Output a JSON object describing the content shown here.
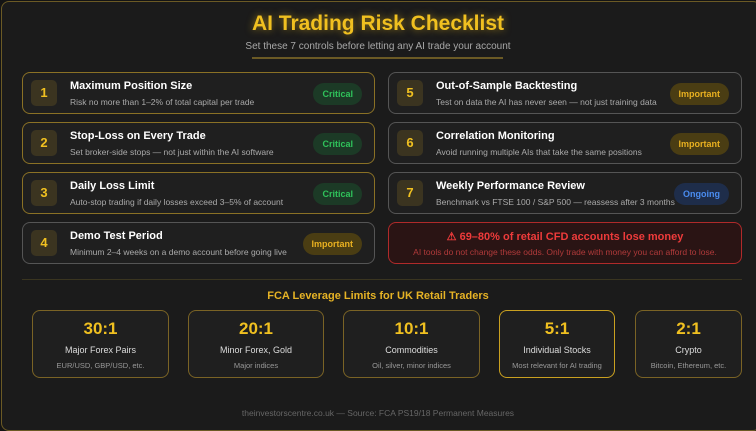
{
  "header": {
    "title": "AI Trading Risk Checklist",
    "subtitle": "Set these 7 controls before letting any AI trade your account"
  },
  "checklist": [
    {
      "num": "1",
      "title": "Maximum Position Size",
      "desc": "Risk no more than 1–2% of total capital per trade",
      "badge": "Critical"
    },
    {
      "num": "2",
      "title": "Stop-Loss on Every Trade",
      "desc": "Set broker-side stops — not just within the AI software",
      "badge": "Critical"
    },
    {
      "num": "3",
      "title": "Daily Loss Limit",
      "desc": "Auto-stop trading if daily losses exceed 3–5% of account",
      "badge": "Critical"
    },
    {
      "num": "4",
      "title": "Demo Test Period",
      "desc": "Minimum 2–4 weeks on a demo account before going live",
      "badge": "Important"
    },
    {
      "num": "5",
      "title": "Out-of-Sample Backtesting",
      "desc": "Test on data the AI has never seen — not just training data",
      "badge": "Important"
    },
    {
      "num": "6",
      "title": "Correlation Monitoring",
      "desc": "Avoid running multiple AIs that take the same positions",
      "badge": "Important"
    },
    {
      "num": "7",
      "title": "Weekly Performance Review",
      "desc": "Benchmark vs FTSE 100 / S&P 500 — reassess after 3 months",
      "badge": "Ongoing"
    }
  ],
  "warning": {
    "icon": "warning-triangle",
    "title": "⚠ 69–80% of retail CFD accounts lose money",
    "desc": "AI tools do not change these odds. Only trade with money you can afford to lose."
  },
  "leverage": {
    "title": "FCA Leverage Limits for UK Retail Traders",
    "items": [
      {
        "ratio": "30:1",
        "label": "Major Forex Pairs",
        "sub": "EUR/USD, GBP/USD, etc."
      },
      {
        "ratio": "20:1",
        "label": "Minor Forex, Gold",
        "sub": "Major indices"
      },
      {
        "ratio": "10:1",
        "label": "Commodities",
        "sub": "Oil, silver, minor indices"
      },
      {
        "ratio": "5:1",
        "label": "Individual Stocks",
        "sub": "Most relevant for AI trading"
      },
      {
        "ratio": "2:1",
        "label": "Crypto",
        "sub": "Bitcoin, Ethereum, etc."
      }
    ]
  },
  "footer": "theinvestorscentre.co.uk — Source: FCA PS19/18 Permanent Measures",
  "colors": {
    "accent": "#f0c020",
    "critical": "#2fc35a",
    "important": "#e8b020",
    "ongoing": "#4a8cf0",
    "danger": "#ef3b3b"
  }
}
